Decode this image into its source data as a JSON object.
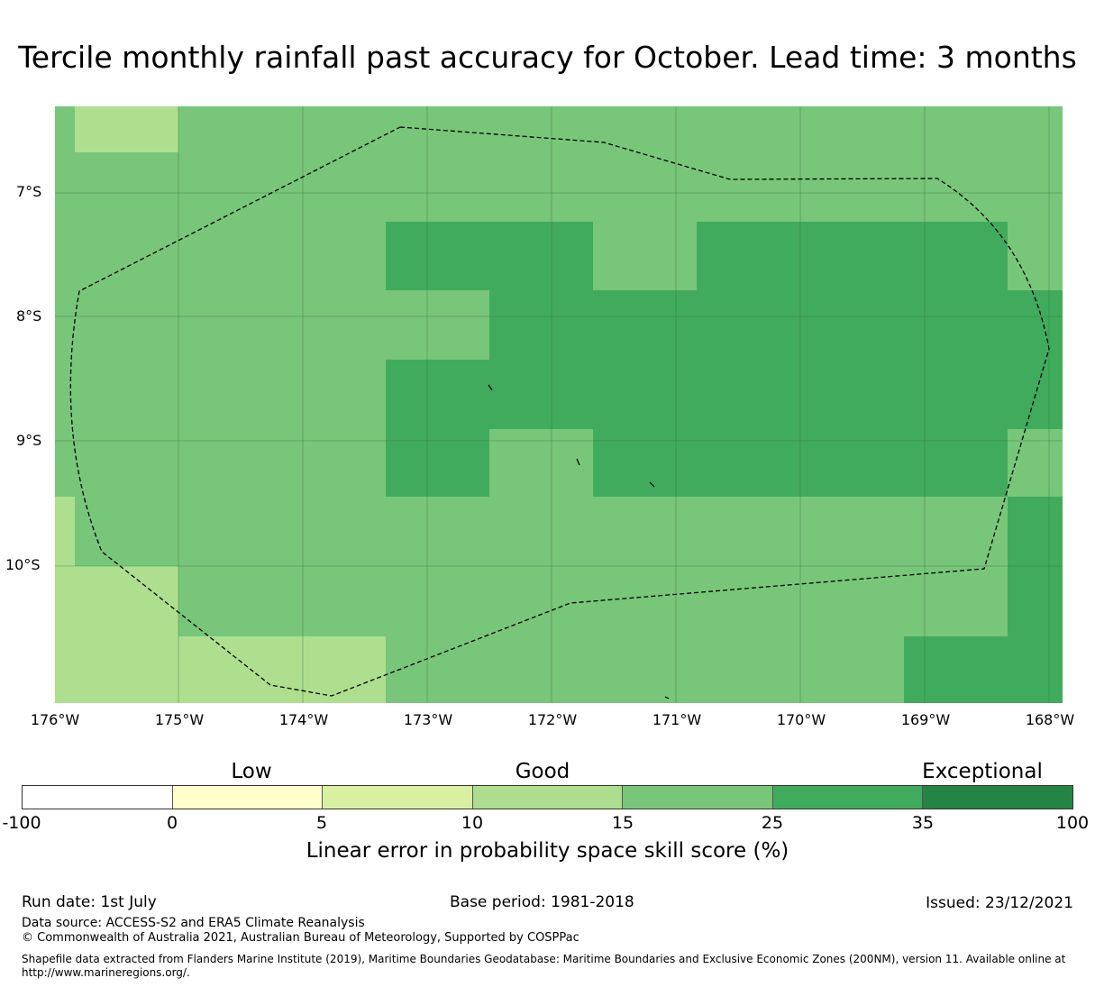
{
  "title": "Tercile monthly rainfall past accuracy for October. Lead time: 3 months",
  "map": {
    "lat_labels": [
      "7°S",
      "8°S",
      "9°S",
      "10°S"
    ],
    "lon_labels": [
      "176°W",
      "175°W",
      "174°W",
      "173°W",
      "172°W",
      "171°W",
      "170°W",
      "169°W",
      "168°W"
    ],
    "cell_classes": {
      "light": "#addf8e",
      "medium": "#78c679",
      "dark": "#41ab5d"
    },
    "region": "Tokelau exclusive economic zone boundary (dashed)"
  },
  "colorbar": {
    "category_labels": [
      "Low",
      "Good",
      "Exceptional"
    ],
    "tick_labels": [
      "-100",
      "0",
      "5",
      "10",
      "15",
      "25",
      "35",
      "100"
    ],
    "colors": [
      "#ffffff",
      "#ffffcc",
      "#d9f0a3",
      "#addd8e",
      "#78c679",
      "#41ab5d",
      "#238443"
    ],
    "label": "Linear error in probability space skill score (%)"
  },
  "footer": {
    "run_date": "Run date: 1st July",
    "base_period": "Base period: 1981-2018",
    "issued": "Issued: 23/12/2021",
    "data_source": "Data source: ACCESS-S2 and ERA5 Climate Reanalysis",
    "copyright": "© Commonwealth of Australia 2021, Australian Bureau of Meteorology, Supported by COSPPac",
    "shapefile_line1": "Shapefile data extracted from Flanders Marine Institute (2019), Maritime Boundaries Geodatabase: Maritime Boundaries and Exclusive Economic Zones (200NM), version 11. Available online at",
    "shapefile_line2": "http://www.marineregions.org/."
  }
}
